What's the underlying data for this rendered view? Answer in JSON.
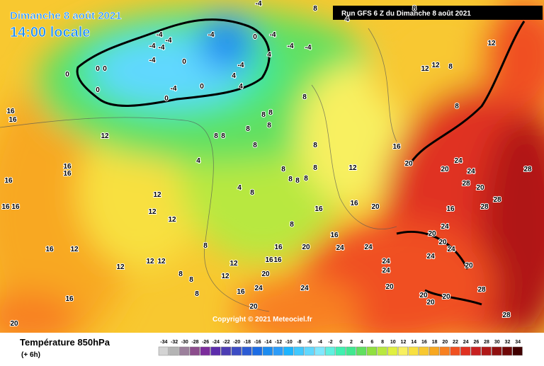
{
  "header": {
    "date": "Dimanche 8 août 2021",
    "time": "14:00 locale",
    "run": "Run GFS 6 Z du Dimanche 8 août 2021",
    "copyright": "Copyright © 2021 Meteociel.fr"
  },
  "footer": {
    "title": "Température 850hPa",
    "lead": "(+ 6h)"
  },
  "legend": {
    "ticks": [
      -34,
      -32,
      -30,
      -28,
      -26,
      -24,
      -22,
      -20,
      -18,
      -16,
      -14,
      -12,
      -10,
      -8,
      -6,
      -4,
      -2,
      0,
      2,
      4,
      6,
      8,
      10,
      12,
      14,
      16,
      18,
      20,
      22,
      24,
      26,
      28,
      30,
      32,
      34
    ],
    "colors": [
      "#d4d4d4",
      "#b4b4b4",
      "#9c809c",
      "#8c4c8c",
      "#7c2c9c",
      "#5c2cac",
      "#4c3cb4",
      "#3c4cc4",
      "#2c5cd4",
      "#1c6ce4",
      "#1c8cf0",
      "#2c9cf8",
      "#1cb4ff",
      "#40c8ff",
      "#60d8ff",
      "#80e8ff",
      "#60f0e0",
      "#40f0b0",
      "#40e890",
      "#60e060",
      "#90e040",
      "#b8e840",
      "#e0f040",
      "#f8f060",
      "#f8e040",
      "#f8c830",
      "#f8a820",
      "#f88020",
      "#f05020",
      "#e03020",
      "#c82020",
      "#b01818",
      "#901010",
      "#700808",
      "#400000"
    ]
  },
  "map_labels": [
    0,
    0,
    0,
    0,
    -4,
    -4,
    -4,
    -4,
    -4,
    -4,
    -4,
    -4,
    -4,
    -4,
    -4,
    -4,
    0,
    0,
    4,
    4,
    0,
    4,
    0,
    16,
    16,
    12,
    16,
    16,
    16,
    16,
    16,
    16,
    12,
    12,
    12,
    12,
    12,
    12,
    12,
    20,
    16,
    4,
    8,
    8,
    8,
    8,
    8,
    8,
    8,
    4,
    8,
    8,
    8,
    8,
    8,
    8,
    8,
    8,
    12,
    16,
    20,
    16,
    20,
    20,
    24,
    24,
    28,
    20,
    28,
    28,
    28,
    16,
    24,
    20,
    20,
    24,
    24,
    20,
    24,
    24,
    24,
    20,
    20,
    20,
    20,
    28,
    28,
    24,
    16,
    20,
    16,
    20,
    24,
    16,
    20,
    24,
    8,
    8,
    8,
    8,
    12,
    12,
    16,
    16,
    16,
    12,
    12,
    8,
    12,
    8,
    8,
    4,
    8,
    8
  ]
}
